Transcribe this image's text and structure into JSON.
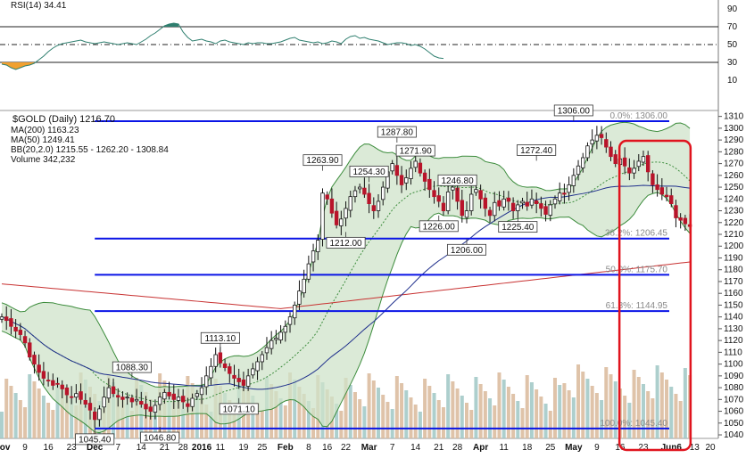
{
  "chart_data": {
    "type": "candlestick",
    "title": "$GOLD (Daily) 1216.70",
    "legend": [
      {
        "label": "MA(200) 1163.23",
        "color": "#c83232"
      },
      {
        "label": "MA(50) 1249.41",
        "color": "#1f2f8c"
      },
      {
        "label": "BB(20,2.0) 1215.55 - 1262.20 - 1308.84",
        "color": "#3c8c3c"
      },
      {
        "label": "Volume 342,232",
        "color": "#6aa6a0"
      }
    ],
    "rsi": {
      "label": "RSI(14) 34.41",
      "levels": [
        70,
        50,
        30
      ],
      "ticks": [
        90,
        70,
        50,
        30,
        10
      ],
      "values": [
        28,
        27,
        24,
        22,
        24,
        26,
        27,
        29,
        33,
        37,
        42,
        46,
        49,
        51,
        52,
        53,
        54,
        55,
        53,
        52,
        51,
        52,
        53,
        52,
        51,
        50,
        51,
        52,
        51,
        50,
        53,
        56,
        60,
        63,
        67,
        71,
        73,
        74,
        73,
        64,
        58,
        54,
        55,
        56,
        54,
        53,
        51,
        54,
        55,
        53,
        52,
        51,
        50,
        52,
        51,
        52,
        52,
        51,
        51,
        52,
        53,
        55,
        57,
        58,
        55,
        54,
        53,
        52,
        53,
        51,
        52,
        54,
        53,
        51,
        56,
        59,
        60,
        57,
        58,
        56,
        55,
        54,
        52,
        50,
        51,
        52,
        52,
        51,
        49,
        50,
        48,
        45,
        41,
        37,
        35,
        34.41
      ]
    },
    "x_ticks": [
      {
        "label": "Nov",
        "i": 0
      },
      {
        "label": "9",
        "i": 5
      },
      {
        "label": "16",
        "i": 10
      },
      {
        "label": "23",
        "i": 15
      },
      {
        "label": "Dec",
        "i": 20
      },
      {
        "label": "7",
        "i": 25
      },
      {
        "label": "14",
        "i": 30
      },
      {
        "label": "21",
        "i": 35
      },
      {
        "label": "28",
        "i": 39
      },
      {
        "label": "2016",
        "i": 43
      },
      {
        "label": "11",
        "i": 47
      },
      {
        "label": "19",
        "i": 52
      },
      {
        "label": "25",
        "i": 56
      },
      {
        "label": "Feb",
        "i": 61
      },
      {
        "label": "8",
        "i": 66
      },
      {
        "label": "16",
        "i": 70
      },
      {
        "label": "22",
        "i": 74
      },
      {
        "label": "Mar",
        "i": 79
      },
      {
        "label": "7",
        "i": 84
      },
      {
        "label": "14",
        "i": 89
      },
      {
        "label": "21",
        "i": 94
      },
      {
        "label": "28",
        "i": 98
      },
      {
        "label": "Apr",
        "i": 103
      },
      {
        "label": "11",
        "i": 108
      },
      {
        "label": "18",
        "i": 113
      },
      {
        "label": "25",
        "i": 118
      },
      {
        "label": "May",
        "i": 123
      },
      {
        "label": "9",
        "i": 128
      },
      {
        "label": "16",
        "i": 133
      },
      {
        "label": "23",
        "i": 138
      },
      {
        "label": "Jun6",
        "i": 144
      },
      {
        "label": "13",
        "i": 149
      },
      {
        "label": "20",
        "i": 154
      }
    ],
    "y_ticks": [
      1310,
      1300,
      1290,
      1280,
      1270,
      1260,
      1250,
      1240,
      1230,
      1220,
      1210,
      1200,
      1190,
      1180,
      1170,
      1160,
      1150,
      1140,
      1130,
      1120,
      1110,
      1100,
      1090,
      1080,
      1070,
      1060,
      1050,
      1040
    ],
    "ylim": [
      1037,
      1312
    ],
    "close": [
      1140,
      1137,
      1132,
      1128,
      1125,
      1118,
      1106,
      1100,
      1093,
      1088,
      1086,
      1082,
      1083,
      1079,
      1074,
      1072,
      1075,
      1070,
      1066,
      1061,
      1053,
      1062,
      1072,
      1080,
      1075,
      1072,
      1070,
      1072,
      1068,
      1070,
      1066,
      1062,
      1060,
      1065,
      1072,
      1076,
      1073,
      1070,
      1072,
      1068,
      1064,
      1071,
      1075,
      1080,
      1090,
      1098,
      1108,
      1101,
      1097,
      1092,
      1088,
      1085,
      1082,
      1090,
      1096,
      1102,
      1108,
      1114,
      1120,
      1122,
      1127,
      1132,
      1140,
      1150,
      1162,
      1172,
      1185,
      1196,
      1205,
      1245,
      1240,
      1228,
      1218,
      1223,
      1232,
      1242,
      1247,
      1250,
      1244,
      1236,
      1230,
      1238,
      1250,
      1263,
      1270,
      1260,
      1252,
      1258,
      1266,
      1272,
      1262,
      1255,
      1248,
      1242,
      1238,
      1230,
      1246,
      1250,
      1238,
      1226,
      1230,
      1244,
      1248,
      1240,
      1232,
      1226,
      1237,
      1234,
      1240,
      1238,
      1230,
      1235,
      1238,
      1234,
      1240,
      1236,
      1232,
      1227,
      1235,
      1240,
      1245,
      1244,
      1252,
      1260,
      1268,
      1275,
      1285,
      1290,
      1294,
      1292,
      1284,
      1276,
      1270,
      1274,
      1268,
      1262,
      1266,
      1272,
      1276,
      1263,
      1252,
      1248,
      1244,
      1242,
      1236,
      1224,
      1222,
      1219,
      1216.7
    ],
    "callouts": [
      {
        "label": "1088.30",
        "i": 28,
        "value": 1088.3,
        "pos": "top"
      },
      {
        "label": "1045.40",
        "i": 20,
        "value": 1045.4,
        "pos": "bottom"
      },
      {
        "label": "1046.80",
        "i": 34,
        "value": 1046.8,
        "pos": "bottom"
      },
      {
        "label": "1113.10",
        "i": 47,
        "value": 1113.1,
        "pos": "top"
      },
      {
        "label": "1071.10",
        "i": 51,
        "value": 1071.1,
        "pos": "bottom"
      },
      {
        "label": "1263.90",
        "i": 69,
        "value": 1263.9,
        "pos": "top"
      },
      {
        "label": "1212.00",
        "i": 74,
        "value": 1212.0,
        "pos": "bottom"
      },
      {
        "label": "1254.30",
        "i": 79,
        "value": 1254.3,
        "pos": "top"
      },
      {
        "label": "1287.80",
        "i": 85,
        "value": 1287.8,
        "pos": "top"
      },
      {
        "label": "1271.90",
        "i": 89,
        "value": 1271.9,
        "pos": "top"
      },
      {
        "label": "1226.00",
        "i": 94,
        "value": 1226.0,
        "pos": "bottom"
      },
      {
        "label": "1246.80",
        "i": 98,
        "value": 1246.8,
        "pos": "top"
      },
      {
        "label": "1206.00",
        "i": 100,
        "value": 1206.0,
        "pos": "bottom"
      },
      {
        "label": "1225.40",
        "i": 111,
        "value": 1225.4,
        "pos": "bottom"
      },
      {
        "label": "1272.40",
        "i": 115,
        "value": 1272.4,
        "pos": "top"
      },
      {
        "label": "1306.00",
        "i": 123,
        "value": 1306.0,
        "pos": "top"
      }
    ],
    "fib_levels": [
      {
        "label": "0.0%: 1306.00",
        "value": 1306.0
      },
      {
        "label": "38.2%: 1206.45",
        "value": 1206.45
      },
      {
        "label": "50.0%: 1175.70",
        "value": 1175.7
      },
      {
        "label": "61.8%: 1144.95",
        "value": 1144.95
      },
      {
        "label": "100.0%: 1045.40",
        "value": 1045.4
      }
    ],
    "highlight": {
      "from_i": 134,
      "to_i": 147,
      "color": "#e0141e"
    },
    "colors": {
      "up": "#1a1a1a",
      "down": "#b8142a",
      "fib": "#0a14e6",
      "bb_fill": "#cfe3c9",
      "rsi_high": "#2f7f6f",
      "rsi_low": "#f0a030"
    }
  }
}
